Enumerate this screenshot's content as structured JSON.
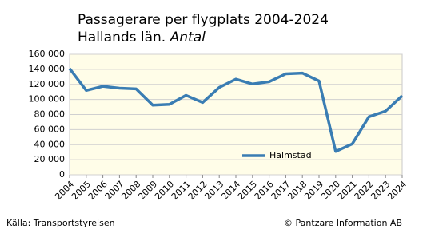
{
  "chart_data": {
    "type": "line",
    "title": "Passagerare per flygplats 2004-2024",
    "subtitle": "Hallands län.",
    "unit": "Antal",
    "categories": [
      "2004",
      "2005",
      "2006",
      "2007",
      "2008",
      "2009",
      "2010",
      "2011",
      "2012",
      "2013",
      "2014",
      "2015",
      "2016",
      "2017",
      "2018",
      "2019",
      "2020",
      "2021",
      "2022",
      "2023",
      "2024"
    ],
    "series": [
      {
        "name": "Halmstad",
        "color": "#3a7db3",
        "values": [
          141000,
          112000,
          117500,
          115000,
          114000,
          92500,
          93500,
          105500,
          96000,
          116000,
          127000,
          120500,
          123500,
          134000,
          135000,
          124500,
          31000,
          41000,
          77000,
          84500,
          105000
        ]
      }
    ],
    "ylim": [
      0,
      160000
    ],
    "yticks": [
      0,
      {
        "value": 20000,
        "label": "20 000"
      },
      {
        "value": 40000,
        "label": "40 000"
      },
      {
        "value": 60000,
        "label": "60 000"
      },
      {
        "value": 80000,
        "label": "80 000"
      },
      {
        "value": 100000,
        "label": "100 000"
      },
      {
        "value": 120000,
        "label": "120 000"
      },
      {
        "value": 140000,
        "label": "140 000"
      },
      {
        "value": 160000,
        "label": "160 000"
      }
    ],
    "grid": true,
    "legend": "lower center",
    "source": "Källa: Transportstyrelsen",
    "copyright": "© Pantzare Information AB"
  }
}
